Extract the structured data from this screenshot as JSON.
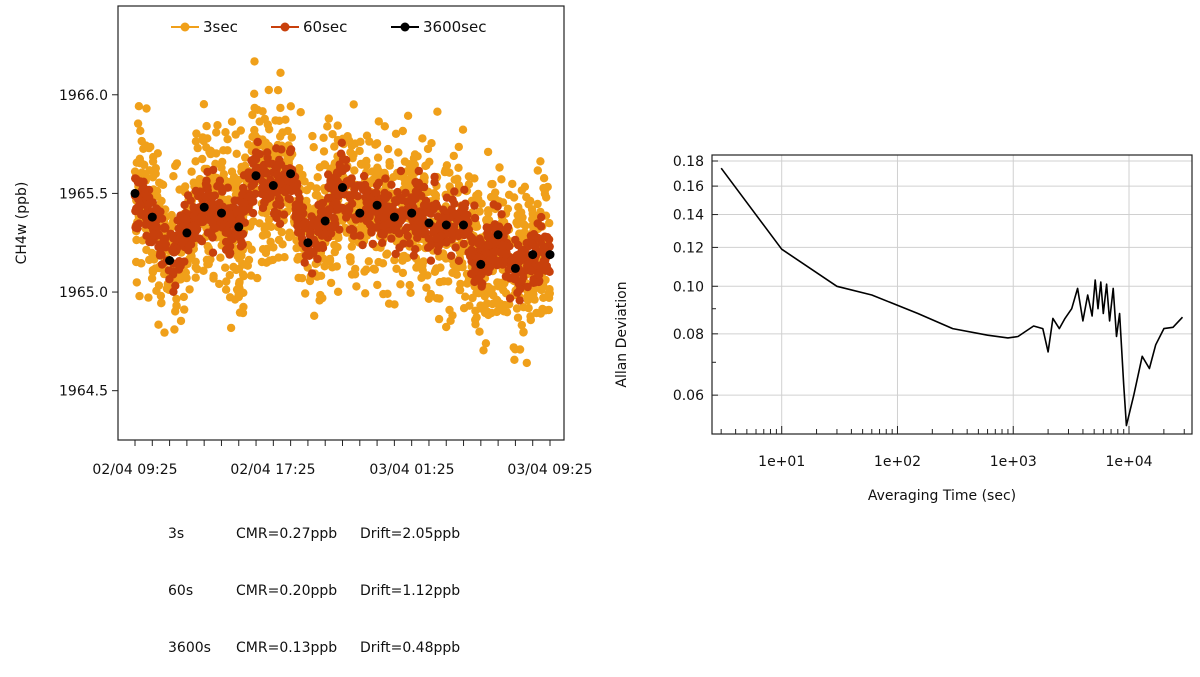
{
  "chart_data": [
    {
      "type": "scatter",
      "ylabel": "CH4w (ppb)",
      "x_tick_labels": [
        "02/04  09:25",
        "02/04  17:25",
        "03/04  01:25",
        "03/04  09:25"
      ],
      "y_ticks": [
        1964.5,
        1965.0,
        1965.5,
        1966.0
      ],
      "y_tick_labels": [
        "1964.5",
        "1965.0",
        "1965.5",
        "1966.0"
      ],
      "ylim": [
        1964.25,
        1966.45
      ],
      "legend_position": "top",
      "legend": [
        {
          "label": "3sec",
          "color": "#f0a01a"
        },
        {
          "label": "60sec",
          "color": "#c8400c"
        },
        {
          "label": "3600sec",
          "color": "#000000"
        }
      ],
      "series": [
        {
          "name": "3sec",
          "color": "#f0a01a",
          "mean": 1965.35,
          "spread": 0.38
        },
        {
          "name": "60sec",
          "color": "#c8400c",
          "mean": 1965.35,
          "spread": 0.14
        },
        {
          "name": "3600sec",
          "color": "#000000",
          "x_hours": [
            0,
            1,
            2,
            3,
            4,
            5,
            6,
            7,
            8,
            9,
            10,
            11,
            12,
            13,
            14,
            15,
            16,
            17,
            18,
            19,
            20,
            21,
            22,
            23,
            24
          ],
          "values": [
            1965.5,
            1965.38,
            1965.16,
            1965.3,
            1965.43,
            1965.4,
            1965.33,
            1965.59,
            1965.54,
            1965.6,
            1965.25,
            1965.36,
            1965.53,
            1965.4,
            1965.44,
            1965.38,
            1965.4,
            1965.35,
            1965.34,
            1965.34,
            1965.14,
            1965.29,
            1965.12,
            1965.19,
            1965.19
          ]
        }
      ],
      "stats_table": [
        {
          "label": "3s",
          "cmr": "CMR=0.27ppb",
          "drift": "Drift=2.05ppb"
        },
        {
          "label": "60s",
          "cmr": "CMR=0.20ppb",
          "drift": "Drift=1.12ppb"
        },
        {
          "label": "3600s",
          "cmr": "CMR=0.13ppb",
          "drift": "Drift=0.48ppb"
        }
      ]
    },
    {
      "type": "line",
      "xlabel": "Averaging Time (sec)",
      "ylabel": "Allan Deviation",
      "x_scale": "log",
      "y_scale": "log",
      "grid": true,
      "x_tick_labels": [
        "1e+01",
        "1e+02",
        "1e+03",
        "1e+04"
      ],
      "y_tick_labels": [
        "0.18",
        "0.16",
        "0.14",
        "0.12",
        "0.10",
        "0.08",
        "0.06"
      ],
      "y_ticks": [
        0.18,
        0.16,
        0.14,
        0.12,
        0.1,
        0.08,
        0.06
      ],
      "xlim": [
        2.5,
        35000
      ],
      "ylim": [
        0.05,
        0.18
      ],
      "series": [
        {
          "color": "#000000",
          "x": [
            3,
            10,
            30,
            60,
            150,
            300,
            600,
            900,
            1100,
            1500,
            1800,
            2000,
            2200,
            2500,
            2800,
            3200,
            3600,
            4000,
            4400,
            4800,
            5100,
            5400,
            5700,
            6000,
            6400,
            6800,
            7300,
            7800,
            8300,
            9000,
            9500,
            11000,
            13000,
            15000,
            17000,
            20000,
            24000,
            29000
          ],
          "y": [
            0.174,
            0.119,
            0.1,
            0.096,
            0.088,
            0.082,
            0.0795,
            0.0785,
            0.079,
            0.083,
            0.082,
            0.0735,
            0.086,
            0.082,
            0.086,
            0.09,
            0.099,
            0.085,
            0.096,
            0.087,
            0.103,
            0.09,
            0.102,
            0.088,
            0.101,
            0.085,
            0.099,
            0.079,
            0.088,
            0.063,
            0.052,
            0.06,
            0.072,
            0.068,
            0.076,
            0.082,
            0.0825,
            0.0865
          ]
        }
      ]
    }
  ]
}
